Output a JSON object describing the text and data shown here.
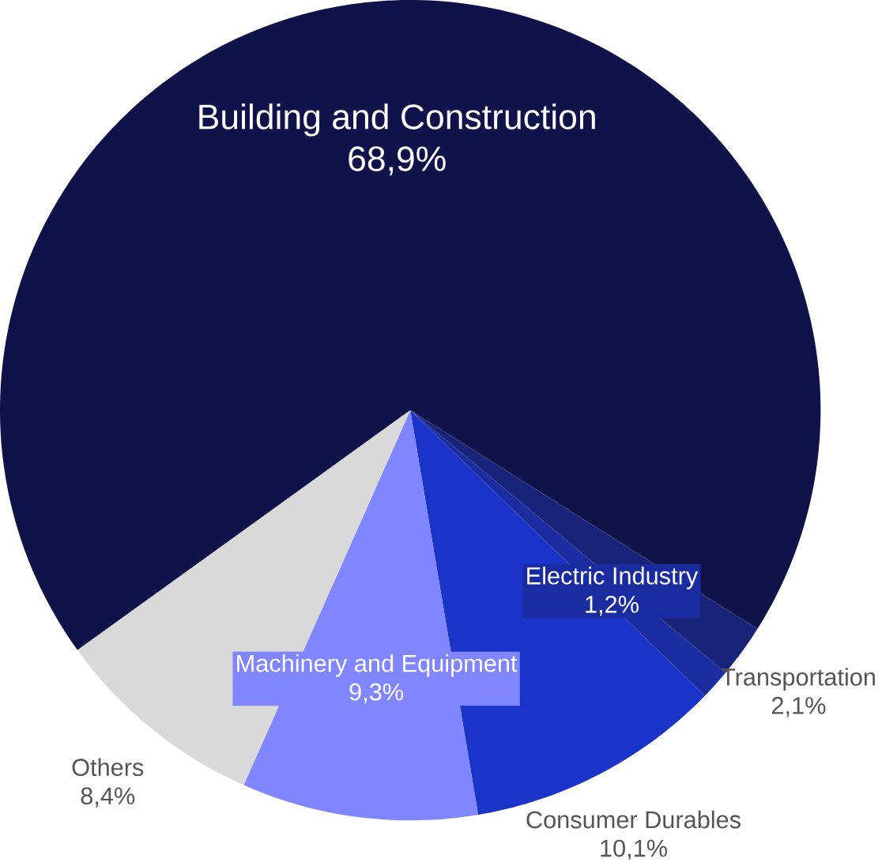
{
  "chart_data": {
    "type": "pie",
    "categories": [
      "Building and Construction",
      "Transportation",
      "Electric Industry",
      "Consumer Durables",
      "Machinery and Equipment",
      "Others"
    ],
    "values": [
      68.9,
      2.1,
      1.2,
      10.1,
      9.3,
      8.4
    ],
    "value_labels": [
      "68,9%",
      "2,1%",
      "1,2%",
      "10,1%",
      "9,3%",
      "8,4%"
    ],
    "colors": [
      "#10124a",
      "#18237a",
      "#1a2ca0",
      "#1a33c8",
      "#7f86ff",
      "#d9d9d9"
    ]
  }
}
